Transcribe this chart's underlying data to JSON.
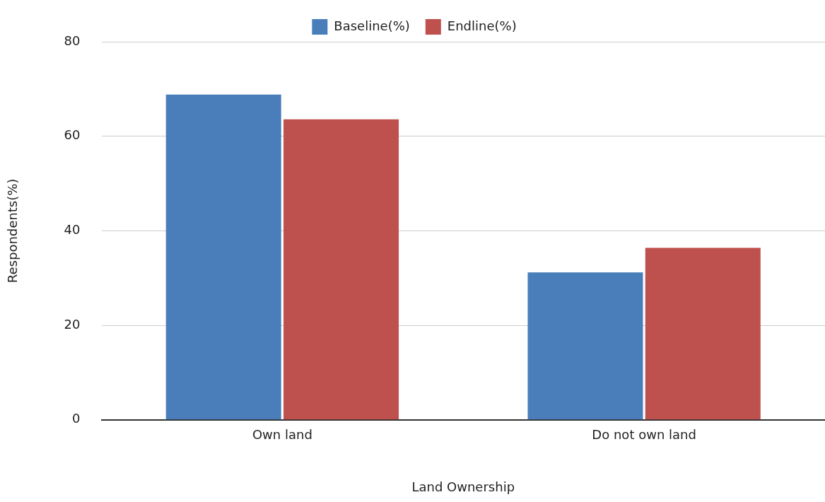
{
  "chart_data": {
    "type": "bar",
    "xlabel": "Land Ownership",
    "ylabel": "Respondents(%)",
    "categories": [
      "Own land",
      "Do not own land"
    ],
    "series": [
      {
        "name": "Baseline(%)",
        "color": "#4a7ebb",
        "values": [
          68.8,
          31.2
        ]
      },
      {
        "name": "Endline(%)",
        "color": "#be504d",
        "values": [
          63.6,
          36.4
        ]
      }
    ],
    "ylim": [
      0,
      80
    ],
    "yticks": [
      0,
      20,
      40,
      60,
      80
    ],
    "grid": "y",
    "legend": "top"
  }
}
